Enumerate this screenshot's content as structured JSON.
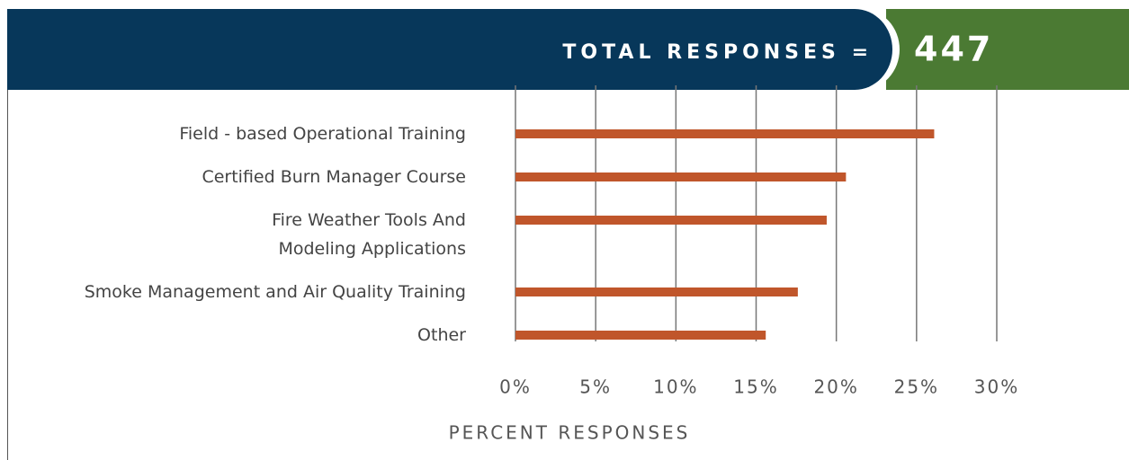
{
  "header": {
    "label": "TOTAL RESPONSES =",
    "value": 447
  },
  "chart_data": {
    "type": "barh",
    "categories": [
      "Field - based Operational Training",
      "Certified Burn Manager Course",
      "Fire Weather Tools And\nModeling Applications",
      "Smoke Management and Air Quality Training",
      "Other"
    ],
    "values": [
      26.1,
      20.6,
      19.4,
      17.6,
      15.6
    ],
    "color": "#c0562b",
    "xlabel": "PERCENT RESPONSES",
    "xlim": [
      0,
      30
    ],
    "xticks": [
      {
        "value": 0,
        "label": "0%"
      },
      {
        "value": 5,
        "label": "5%"
      },
      {
        "value": 10,
        "label": "10%"
      },
      {
        "value": 15,
        "label": "15%"
      },
      {
        "value": 20,
        "label": "20%"
      },
      {
        "value": 25,
        "label": "25%"
      },
      {
        "value": 30,
        "label": "30%"
      }
    ],
    "grid": true
  }
}
